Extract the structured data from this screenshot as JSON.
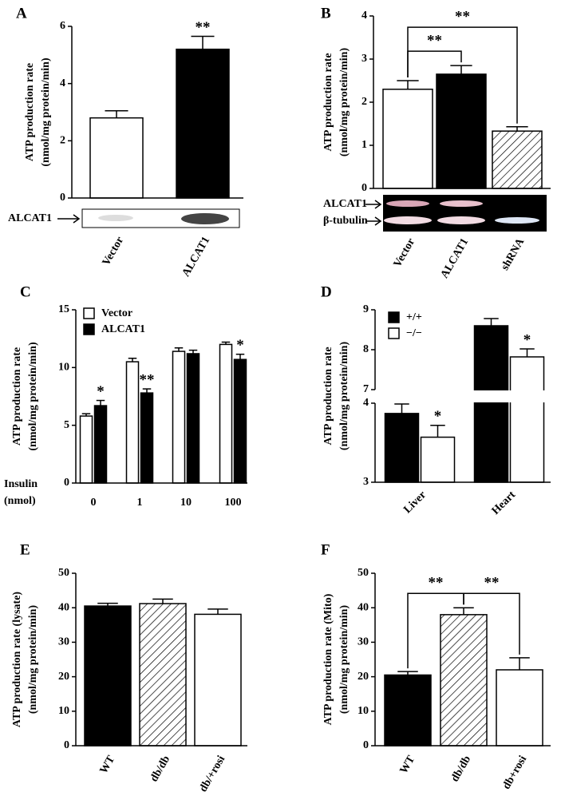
{
  "chart_data": [
    {
      "type": "bar",
      "panel": "A",
      "ylabel": [
        "ATP production rate",
        "(nmol/mg protein/min)"
      ],
      "categories": [
        "Vector",
        "ALCAT1"
      ],
      "values": [
        2.8,
        5.2
      ],
      "errors": [
        0.25,
        0.45
      ],
      "colors": [
        "#ffffff",
        "#000000"
      ],
      "sig_labels": [
        null,
        "**"
      ],
      "ylim": [
        0,
        6
      ],
      "yticks": [
        0,
        2,
        4,
        6
      ],
      "blot_labels": [
        "ALCAT1"
      ]
    },
    {
      "type": "bar",
      "panel": "B",
      "ylabel": [
        "ATP production rate",
        "(nmol/mg protein/min)"
      ],
      "categories": [
        "Vector",
        "ALCAT1",
        "shRNA"
      ],
      "values": [
        2.3,
        2.65,
        1.33
      ],
      "errors": [
        0.2,
        0.2,
        0.1
      ],
      "colors": [
        "#ffffff",
        "#000000",
        "#ffffff"
      ],
      "hatched": [
        false,
        false,
        true
      ],
      "brackets": [
        {
          "from": 0,
          "to": 1,
          "label": "**"
        },
        {
          "from": 0,
          "to": 2,
          "label": "**"
        }
      ],
      "ylim": [
        0,
        4
      ],
      "yticks": [
        0,
        1,
        2,
        3,
        4
      ],
      "blot_labels": [
        "ALCAT1",
        "β-tubulin"
      ]
    },
    {
      "type": "bar",
      "panel": "C",
      "ylabel": [
        "ATP production rate",
        "(nmol/mg protein/min)"
      ],
      "xlabel": [
        "Insulin",
        "(nmol)"
      ],
      "categories": [
        "0",
        "1",
        "10",
        "100"
      ],
      "series": [
        {
          "name": "Vector",
          "color": "#ffffff",
          "values": [
            5.8,
            10.5,
            11.4,
            12.0
          ],
          "errors": [
            0.2,
            0.3,
            0.3,
            0.2
          ]
        },
        {
          "name": "ALCAT1",
          "color": "#000000",
          "values": [
            6.7,
            7.8,
            11.2,
            10.7
          ],
          "errors": [
            0.45,
            0.35,
            0.3,
            0.45
          ],
          "sig_labels": [
            "*",
            "**",
            null,
            "*"
          ]
        }
      ],
      "ylim": [
        0,
        15
      ],
      "yticks": [
        0,
        5,
        10,
        15
      ],
      "legend": "upper left"
    },
    {
      "type": "bar",
      "panel": "D",
      "ylabel": [
        "ATP production rate",
        "(nmol/mg protein/min)"
      ],
      "categories": [
        "Liver",
        "Heart"
      ],
      "series": [
        {
          "name": "+/+",
          "color": "#000000",
          "values": [
            3.87,
            8.6
          ],
          "errors": [
            0.12,
            0.18
          ]
        },
        {
          "name": "−/−",
          "color": "#ffffff",
          "values": [
            3.57,
            7.82
          ],
          "errors": [
            0.15,
            0.2
          ],
          "sig_labels": [
            "*",
            "*"
          ]
        }
      ],
      "ylim": [
        3,
        9
      ],
      "ybreak": [
        4,
        7
      ],
      "yticks": [
        3,
        4,
        7,
        8,
        9
      ],
      "legend": "upper left"
    },
    {
      "type": "bar",
      "panel": "E",
      "ylabel": [
        "ATP production rate (lysate)",
        "(nmol/mg protein/min)"
      ],
      "categories": [
        "WT",
        "db/db",
        "db/+rosi"
      ],
      "values": [
        40.5,
        41.2,
        38.1
      ],
      "errors": [
        0.8,
        1.3,
        1.5
      ],
      "colors": [
        "#000000",
        "#ffffff",
        "#ffffff"
      ],
      "hatched": [
        false,
        true,
        false
      ],
      "ylim": [
        0,
        50
      ],
      "yticks": [
        0,
        10,
        20,
        30,
        40,
        50
      ]
    },
    {
      "type": "bar",
      "panel": "F",
      "ylabel": [
        "ATP production rate (Mito)",
        "(nmol/mg protein/min)"
      ],
      "categories": [
        "WT",
        "db/db",
        "db+rosi"
      ],
      "values": [
        20.5,
        38.0,
        22.0
      ],
      "errors": [
        1.0,
        2.0,
        3.5
      ],
      "colors": [
        "#000000",
        "#ffffff",
        "#ffffff"
      ],
      "hatched": [
        false,
        true,
        false
      ],
      "brackets": [
        {
          "from": 0,
          "to": 1,
          "label": "**"
        },
        {
          "from": 1,
          "to": 2,
          "label": "**"
        }
      ],
      "ylim": [
        0,
        50
      ],
      "yticks": [
        0,
        10,
        20,
        30,
        40,
        50
      ]
    }
  ]
}
